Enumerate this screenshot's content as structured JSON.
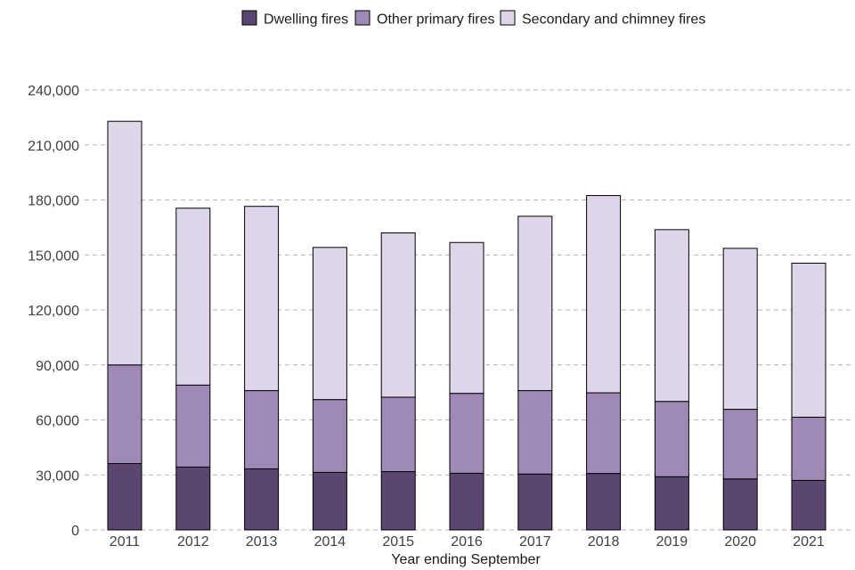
{
  "chart_data": {
    "type": "bar",
    "stacked": true,
    "title": "",
    "xlabel": "Year ending September",
    "ylabel": "",
    "ylim": [
      0,
      240000
    ],
    "yticks": [
      0,
      30000,
      60000,
      90000,
      120000,
      150000,
      180000,
      210000,
      240000
    ],
    "ytick_labels": [
      "0",
      "30,000",
      "60,000",
      "90,000",
      "120,000",
      "150,000",
      "180,000",
      "210,000",
      "240,000"
    ],
    "grid": "horizontal-dashed",
    "legend_position": "top",
    "categories": [
      "2011",
      "2012",
      "2013",
      "2014",
      "2015",
      "2016",
      "2017",
      "2018",
      "2019",
      "2020",
      "2021"
    ],
    "series": [
      {
        "name": "Dwelling fires",
        "color": "#5a4670",
        "values": [
          36200,
          34300,
          33300,
          31400,
          31800,
          30900,
          30500,
          30800,
          29000,
          27800,
          27000
        ]
      },
      {
        "name": "Other primary fires",
        "color": "#9f89b6",
        "values": [
          53800,
          44700,
          42700,
          39700,
          40600,
          43600,
          45500,
          44000,
          41100,
          38000,
          34500
        ]
      },
      {
        "name": "Secondary and chimney fires",
        "color": "#ded6e8",
        "values": [
          132900,
          96500,
          100500,
          83000,
          89600,
          82300,
          95100,
          107600,
          93700,
          87800,
          84000
        ]
      }
    ]
  }
}
